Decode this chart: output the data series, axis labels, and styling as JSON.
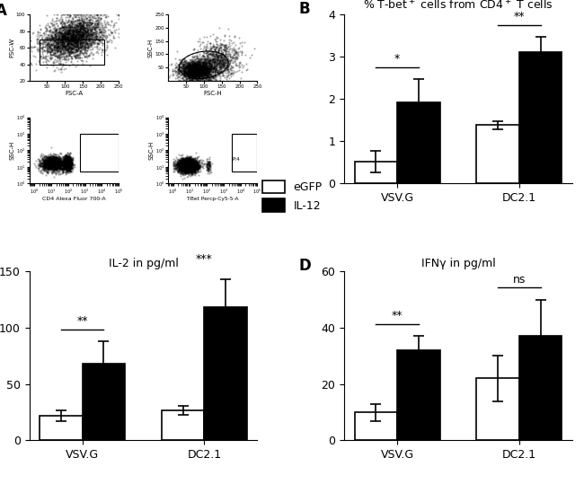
{
  "panel_B": {
    "title": "% T-bet$^+$ cells from CD4$^+$ T cells",
    "groups": [
      "VSV.G",
      "DC2.1"
    ],
    "white_bars": [
      0.52,
      1.38
    ],
    "black_bars": [
      1.92,
      3.12
    ],
    "white_errors": [
      0.25,
      0.1
    ],
    "black_errors": [
      0.55,
      0.35
    ],
    "ylim": [
      0,
      4
    ],
    "yticks": [
      0,
      1,
      2,
      3,
      4
    ],
    "sig_vsv": "*",
    "sig_dc": "**"
  },
  "panel_C": {
    "title": "IL-2 in pg/ml",
    "groups": [
      "VSV.G",
      "DC2.1"
    ],
    "white_bars": [
      22,
      27
    ],
    "black_bars": [
      68,
      118
    ],
    "white_errors": [
      5,
      4
    ],
    "black_errors": [
      20,
      25
    ],
    "ylim": [
      0,
      150
    ],
    "yticks": [
      0,
      50,
      100,
      150
    ],
    "sig_vsv": "**",
    "sig_dc": "***"
  },
  "panel_D": {
    "title": "IFNγ in pg/ml",
    "groups": [
      "VSV.G",
      "DC2.1"
    ],
    "white_bars": [
      10,
      22
    ],
    "black_bars": [
      32,
      37
    ],
    "white_errors": [
      3,
      8
    ],
    "black_errors": [
      5,
      13
    ],
    "ylim": [
      0,
      60
    ],
    "yticks": [
      0,
      20,
      40,
      60
    ],
    "sig_vsv": "**",
    "sig_dc": "ns"
  },
  "legend_labels": [
    "eGFP",
    "IL-12"
  ],
  "bar_width": 0.35,
  "white_color": "white",
  "black_color": "black",
  "edge_color": "black",
  "scatter_n_main": 3000,
  "scatter_n_small": 200
}
